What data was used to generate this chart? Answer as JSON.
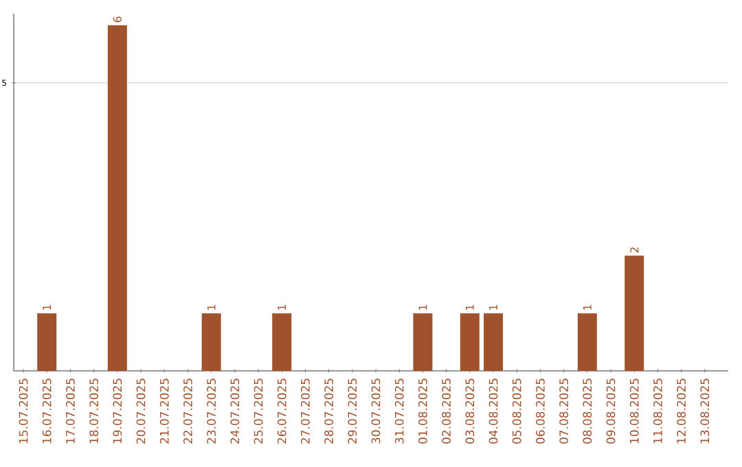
{
  "chart_data": {
    "type": "bar",
    "categories": [
      "15.07.2025",
      "16.07.2025",
      "17.07.2025",
      "18.07.2025",
      "19.07.2025",
      "20.07.2025",
      "21.07.2025",
      "22.07.2025",
      "23.07.2025",
      "24.07.2025",
      "25.07.2025",
      "26.07.2025",
      "27.07.2025",
      "28.07.2025",
      "29.07.2025",
      "30.07.2025",
      "31.07.2025",
      "01.08.2025",
      "02.08.2025",
      "03.08.2025",
      "04.08.2025",
      "05.08.2025",
      "06.08.2025",
      "07.08.2025",
      "08.08.2025",
      "09.08.2025",
      "10.08.2025",
      "11.08.2025",
      "12.08.2025",
      "13.08.2025"
    ],
    "values": [
      0,
      1,
      0,
      0,
      6,
      0,
      0,
      0,
      1,
      0,
      0,
      1,
      0,
      0,
      0,
      0,
      0,
      1,
      0,
      1,
      1,
      0,
      0,
      0,
      1,
      0,
      2,
      0,
      0,
      0
    ],
    "value_labels": [
      null,
      "1",
      null,
      null,
      "6",
      null,
      null,
      null,
      "1",
      null,
      null,
      "1",
      null,
      null,
      null,
      null,
      null,
      "1",
      null,
      "1",
      "1",
      null,
      null,
      null,
      "1",
      null,
      "2",
      null,
      null,
      null
    ],
    "color": "#a0522d",
    "ylim": [
      0,
      6.2
    ],
    "yticks": [
      5
    ],
    "grid": "y"
  }
}
